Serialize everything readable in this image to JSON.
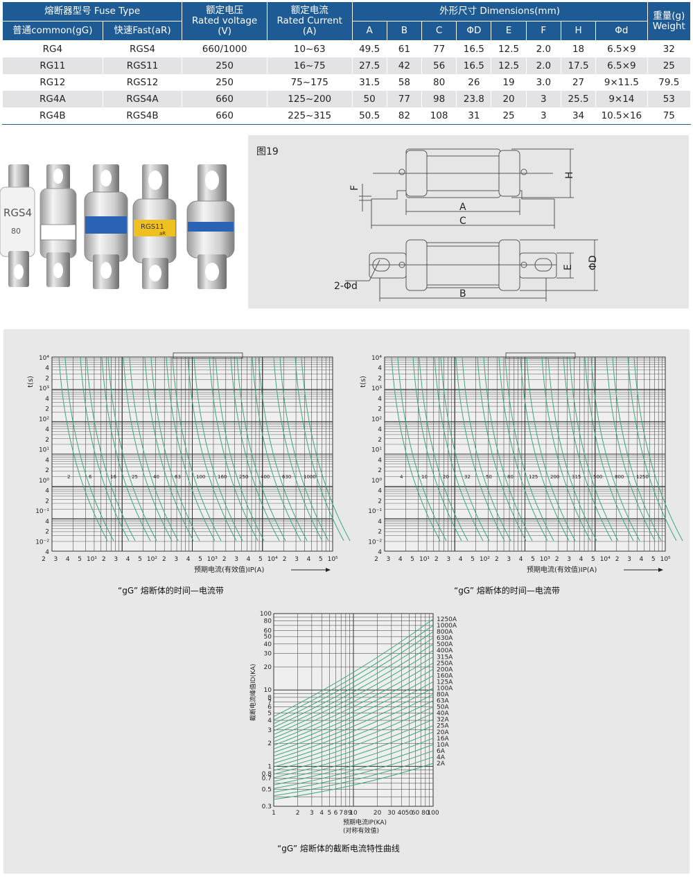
{
  "table": {
    "header": {
      "fuse_type": "熔断器型号 Fuse Type",
      "common": "普通common(gG)",
      "fast": "快速Fast(aR)",
      "voltage": [
        "额定电压",
        "Rated voltage",
        "(V)"
      ],
      "current": [
        "额定电流",
        "Rated Current",
        "(A)"
      ],
      "dimensions": "外形尺寸 Dimensions(mm)",
      "dim_cols": [
        "A",
        "B",
        "C",
        "ΦD",
        "E",
        "F",
        "H",
        "Φd"
      ],
      "weight": [
        "重量(g)",
        "Weight"
      ]
    },
    "rows": [
      [
        "RG4",
        "RGS4",
        "660/1000",
        "10~63",
        "49.5",
        "61",
        "77",
        "16.5",
        "12.5",
        "2.0",
        "18",
        "6.5×9",
        "32"
      ],
      [
        "RG11",
        "RGS11",
        "250",
        "16~75",
        "27.5",
        "42",
        "56",
        "16.5",
        "12.5",
        "2.0",
        "17.5",
        "6.5×9",
        "25"
      ],
      [
        "RG12",
        "RGS12",
        "250",
        "75~175",
        "31.5",
        "58",
        "80",
        "26",
        "19",
        "3.0",
        "27",
        "9×11.5",
        "79.5"
      ],
      [
        "RG4A",
        "RGS4A",
        "660",
        "125~200",
        "50",
        "77",
        "98",
        "23.8",
        "20",
        "3",
        "25.5",
        "9×14",
        "53"
      ],
      [
        "RG4B",
        "RGS4B",
        "660",
        "225~315",
        "50.5",
        "82",
        "108",
        "31",
        "25",
        "3",
        "34",
        "10.5×16",
        "75"
      ]
    ]
  },
  "figure": {
    "title": "图19",
    "dims": [
      "H",
      "F",
      "A",
      "C",
      "E",
      "ΦD",
      "B",
      "2-Φd"
    ]
  },
  "photo": {
    "labels": [
      "RGS4",
      "80",
      "RGS11",
      "aR"
    ]
  },
  "tc_charts": [
    {
      "caption": "“gG” 熔断体的时间—电流带",
      "y_label": "t(s)",
      "x_label": "预期电流(有效值)IP(A)",
      "curve_labels": [
        "2",
        "6",
        "16",
        "25",
        "40",
        "63",
        "100",
        "160",
        "250",
        "400",
        "630",
        "1000"
      ]
    },
    {
      "caption": "“gG” 熔断体的时间—电流带",
      "y_label": "t(s)",
      "x_label": "预期电流(有效值)IP(A)",
      "curve_labels": [
        "4",
        "10",
        "20",
        "32",
        "50",
        "80",
        "125",
        "200",
        "315",
        "500",
        "800",
        "1250"
      ]
    }
  ],
  "tc_axes": {
    "y_ticks": [
      "10⁴",
      "4",
      "2",
      "10³",
      "4",
      "2",
      "10²",
      "4",
      "2",
      "10¹",
      "4",
      "2",
      "10⁰",
      "4",
      "2",
      "10⁻¹",
      "4",
      "2",
      "10⁻²",
      "4"
    ],
    "x_ticks": [
      "2",
      "3",
      "4",
      "5",
      "10¹",
      "2",
      "3",
      "4",
      "5",
      "10²",
      "2",
      "3",
      "4",
      "5",
      "10³",
      "2",
      "3",
      "4",
      "5",
      "10⁴",
      "2",
      "3",
      "4",
      "5",
      "10⁵"
    ]
  },
  "cutoff_chart": {
    "caption": "“gG” 熔断体的截断电流特性曲线",
    "y_label": "截断电流峰值ID(KA)",
    "x_label": "预期电流IP(KA)",
    "x_label2": "(对称有效值)",
    "y_ticks": [
      "100",
      "80",
      "60",
      "50",
      "40",
      "30",
      "20",
      "10",
      "8",
      "7",
      "6",
      "5",
      "4",
      "3",
      "2",
      "1",
      "0.8",
      "0.7",
      "0.5",
      "0.3"
    ],
    "x_ticks": [
      "1",
      "2",
      "3",
      "4",
      "5",
      "6",
      "7",
      "8",
      "9",
      "10",
      "20",
      "30",
      "40",
      "50",
      "60",
      "80",
      "100"
    ],
    "series_labels": [
      "1250A",
      "1000A",
      "800A",
      "630A",
      "500A",
      "400A",
      "315A",
      "250A",
      "200A",
      "160A",
      "125A",
      "100A",
      "80A",
      "63A",
      "50A",
      "40A",
      "32A",
      "25A",
      "20A",
      "16A",
      "10A",
      "6A",
      "4A",
      "2A"
    ]
  },
  "colors": {
    "header_blue": "#1e5a93",
    "curve_green": "#3aa77a",
    "row_alt": "#e3e3e5"
  }
}
